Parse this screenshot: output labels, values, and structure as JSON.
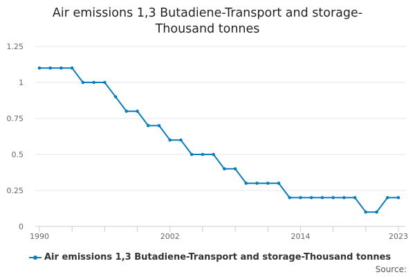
{
  "chart_data": {
    "type": "line",
    "title": "Air emissions 1,3 Butadiene-Transport and storage-\nThousand tonnes",
    "xlabel": "",
    "ylabel": "",
    "xlim": [
      1990,
      2023
    ],
    "ylim": [
      0,
      1.25
    ],
    "xticks": [
      1990,
      2002,
      2014,
      2023
    ],
    "yticks": [
      0,
      0.25,
      0.5,
      0.75,
      1,
      1.25
    ],
    "ytick_labels": [
      "0",
      "0.25",
      "0.5",
      "0.75",
      "1",
      "1.25"
    ],
    "grid": "horizontal",
    "legend_position": "bottom-left",
    "series": [
      {
        "name": "Air emissions 1,3 Butadiene-Transport and storage-Thousand tonnes",
        "color": "#0a7bbd",
        "x": [
          1990,
          1991,
          1992,
          1993,
          1994,
          1995,
          1996,
          1997,
          1998,
          1999,
          2000,
          2001,
          2002,
          2003,
          2004,
          2005,
          2006,
          2007,
          2008,
          2009,
          2010,
          2011,
          2012,
          2013,
          2014,
          2015,
          2016,
          2017,
          2018,
          2019,
          2020,
          2021,
          2022,
          2023
        ],
        "values": [
          1.1,
          1.1,
          1.1,
          1.1,
          1.0,
          1.0,
          1.0,
          0.9,
          0.8,
          0.8,
          0.7,
          0.7,
          0.6,
          0.6,
          0.5,
          0.5,
          0.5,
          0.4,
          0.4,
          0.3,
          0.3,
          0.3,
          0.3,
          0.2,
          0.2,
          0.2,
          0.2,
          0.2,
          0.2,
          0.2,
          0.1,
          0.1,
          0.2,
          0.2
        ]
      }
    ]
  },
  "footer": {
    "source_label": "Source:"
  }
}
